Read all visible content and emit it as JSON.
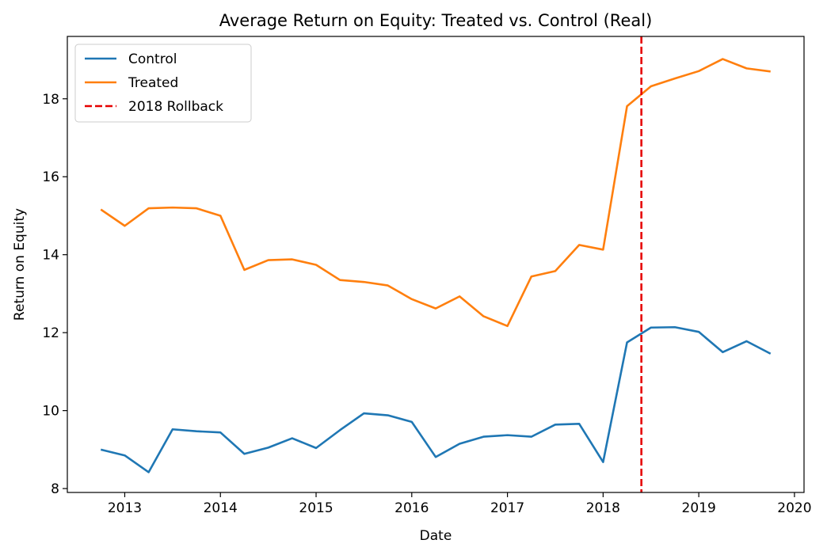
{
  "chart_data": {
    "type": "line",
    "title": "Average Return on Equity: Treated vs. Control (Real)",
    "xlabel": "Date",
    "ylabel": "Return on Equity",
    "xlim": [
      2012.4,
      2020.1
    ],
    "ylim": [
      7.9,
      19.6
    ],
    "xticks": [
      2013,
      2014,
      2015,
      2016,
      2017,
      2018,
      2019,
      2020
    ],
    "yticks": [
      8,
      10,
      12,
      14,
      16,
      18
    ],
    "grid": false,
    "legend_position": "upper-left",
    "x": [
      2012.75,
      2013.0,
      2013.25,
      2013.5,
      2013.75,
      2014.0,
      2014.25,
      2014.5,
      2014.75,
      2015.0,
      2015.25,
      2015.5,
      2015.75,
      2016.0,
      2016.25,
      2016.5,
      2016.75,
      2017.0,
      2017.25,
      2017.5,
      2017.75,
      2018.0,
      2018.25,
      2018.5,
      2018.75,
      2019.0,
      2019.25,
      2019.5,
      2019.75
    ],
    "series": [
      {
        "name": "Control",
        "color": "#1f77b4",
        "values": [
          9.0,
          8.85,
          8.42,
          9.52,
          9.47,
          9.44,
          8.89,
          9.05,
          9.29,
          9.04,
          9.5,
          9.93,
          9.88,
          9.71,
          8.81,
          9.15,
          9.33,
          9.37,
          9.33,
          9.64,
          9.66,
          8.68,
          11.75,
          12.13,
          12.14,
          12.02,
          11.5,
          11.78,
          11.46
        ]
      },
      {
        "name": "Treated",
        "color": "#ff7f0e",
        "values": [
          15.16,
          14.74,
          15.19,
          15.21,
          15.19,
          15.0,
          13.61,
          13.86,
          13.88,
          13.74,
          13.35,
          13.3,
          13.21,
          12.86,
          12.62,
          12.93,
          12.42,
          12.17,
          13.44,
          13.58,
          14.25,
          14.13,
          17.81,
          18.32,
          18.52,
          18.71,
          19.02,
          18.78,
          18.7
        ]
      }
    ],
    "annotations": [
      {
        "type": "vline",
        "name": "2018 Rollback",
        "x": 2018.4,
        "color": "#e60000",
        "linestyle": "dashed"
      }
    ]
  }
}
